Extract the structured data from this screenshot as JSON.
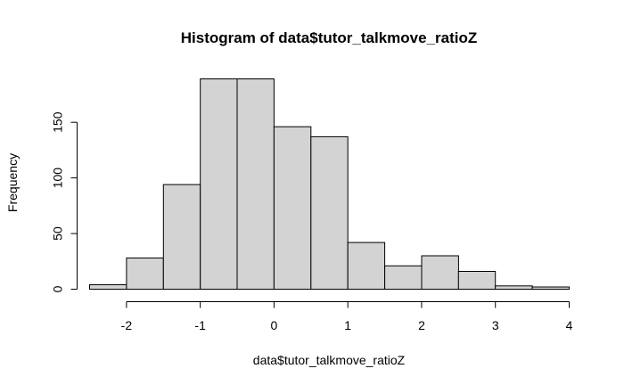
{
  "chart_data": {
    "type": "bar",
    "title": "Histogram of data$tutor_talkmove_ratioZ",
    "xlabel": "data$tutor_talkmove_ratioZ",
    "ylabel": "Frequency",
    "bin_edges": [
      -2.5,
      -2,
      -1.5,
      -1,
      -0.5,
      0,
      0.5,
      1,
      1.5,
      2,
      2.5,
      3,
      3.5,
      4
    ],
    "values": [
      4,
      28,
      94,
      189,
      189,
      146,
      137,
      42,
      21,
      30,
      16,
      3,
      2
    ],
    "xlim": [
      -2.5,
      4
    ],
    "ylim": [
      0,
      189
    ],
    "x_ticks": [
      -2,
      -1,
      0,
      1,
      2,
      3,
      4
    ],
    "x_tick_labels": [
      "-2",
      "-1",
      "0",
      "1",
      "2",
      "3",
      "4"
    ],
    "y_ticks": [
      0,
      50,
      100,
      150
    ],
    "y_tick_labels": [
      "0",
      "50",
      "100",
      "150"
    ],
    "grid": false,
    "bar_color": "#d3d3d3",
    "edge_color": "#000000"
  }
}
